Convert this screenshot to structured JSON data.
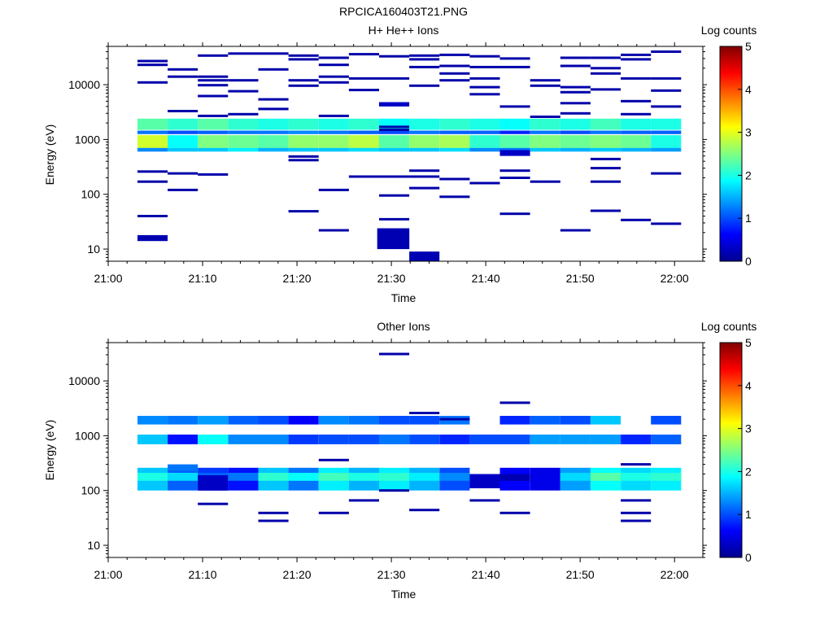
{
  "figure_title": "RPCICA160403T21.PNG",
  "colors": {
    "colormap": [
      "#00008f",
      "#0000ff",
      "#0080ff",
      "#00ffff",
      "#80ff80",
      "#ffff00",
      "#ff8000",
      "#ff0000",
      "#800000"
    ],
    "axis": "#000000",
    "background": "#ffffff"
  },
  "chart_data": [
    {
      "type": "heatmap",
      "title": "H+ He++ Ions",
      "xlabel": "Time",
      "ylabel": "Energy (eV)",
      "x_ticks": [
        "21:00",
        "21:10",
        "21:20",
        "21:30",
        "21:40",
        "21:50",
        "22:00"
      ],
      "xlim_minutes": [
        0,
        63
      ],
      "y_scale": "log",
      "ylim": [
        6,
        50000
      ],
      "y_ticks": [
        {
          "value": 10,
          "label": "10"
        },
        {
          "value": 100,
          "label": "100"
        },
        {
          "value": 1000,
          "label": "1000"
        },
        {
          "value": 10000,
          "label": "10000"
        }
      ],
      "colorbar": {
        "label": "Log counts",
        "range": [
          0,
          5
        ],
        "ticks": [
          "0",
          "1",
          "2",
          "3",
          "4",
          "5"
        ]
      },
      "time_bins_minutes": [
        3.1,
        6.3,
        9.5,
        12.7,
        15.9,
        19.1,
        22.3,
        25.5,
        28.7,
        31.9,
        35.1,
        38.3,
        41.5,
        44.7,
        47.9,
        51.1,
        54.3,
        57.5,
        60.7
      ],
      "bands": [
        {
          "e_lo": 700,
          "e_hi": 1200,
          "values": [
            2.9,
            1.9,
            2.5,
            2.4,
            2.3,
            2.6,
            2.6,
            2.8,
            2.3,
            2.6,
            2.7,
            2.1,
            2.3,
            2.5,
            2.4,
            2.5,
            2.4,
            2.0,
            2.9
          ]
        },
        {
          "e_lo": 600,
          "e_hi": 700,
          "values": [
            1.3,
            1.6,
            1.6,
            1.8,
            1.5,
            1.6,
            1.6,
            1.7,
            1.6,
            1.6,
            1.7,
            1.3,
            1.2,
            1.6,
            1.5,
            1.6,
            1.5,
            1.4,
            1.3
          ]
        },
        {
          "e_lo": 1500,
          "e_hi": 2400,
          "values": [
            2.3,
            2.1,
            2.3,
            2.1,
            2.0,
            2.1,
            2.0,
            2.1,
            1.9,
            2.0,
            2.1,
            2.0,
            1.9,
            2.1,
            2.0,
            2.2,
            2.0,
            2.0,
            2.1
          ]
        },
        {
          "e_lo": 1250,
          "e_hi": 1450,
          "values": [
            1.2,
            1.0,
            1.1,
            1.2,
            1.2,
            1.3,
            1.2,
            1.1,
            1.0,
            1.2,
            1.1,
            1.1,
            0.8,
            1.2,
            1.0,
            1.2,
            1.1,
            1.1,
            1.2
          ]
        }
      ],
      "blocks": [
        {
          "t0": 28.5,
          "t1": 31.9,
          "e_lo": 10,
          "e_hi": 24,
          "value": 0.2
        },
        {
          "t0": 31.9,
          "t1": 35.1,
          "e_lo": 6,
          "e_hi": 9,
          "value": 0.2
        },
        {
          "t0": 3.1,
          "t1": 6.3,
          "e_lo": 14,
          "e_hi": 18,
          "value": 0.2
        },
        {
          "t0": 41.5,
          "t1": 44.7,
          "e_lo": 500,
          "e_hi": 640,
          "value": 0.3
        },
        {
          "t0": 28.7,
          "t1": 31.9,
          "e_lo": 4000,
          "e_hi": 4800,
          "value": 0.3
        }
      ],
      "lines": [
        {
          "t": 3.1,
          "e": 27000
        },
        {
          "t": 3.1,
          "e": 23000
        },
        {
          "t": 3.1,
          "e": 11000
        },
        {
          "t": 3.1,
          "e": 260
        },
        {
          "t": 3.1,
          "e": 170
        },
        {
          "t": 3.1,
          "e": 40
        },
        {
          "t": 6.3,
          "e": 19000
        },
        {
          "t": 6.3,
          "e": 14000
        },
        {
          "t": 6.3,
          "e": 3300
        },
        {
          "t": 6.3,
          "e": 240
        },
        {
          "t": 6.3,
          "e": 120
        },
        {
          "t": 9.5,
          "e": 34000
        },
        {
          "t": 9.5,
          "e": 14000
        },
        {
          "t": 9.5,
          "e": 12000
        },
        {
          "t": 9.5,
          "e": 9800
        },
        {
          "t": 9.5,
          "e": 6200
        },
        {
          "t": 9.5,
          "e": 2700
        },
        {
          "t": 9.5,
          "e": 230
        },
        {
          "t": 12.7,
          "e": 37000
        },
        {
          "t": 12.7,
          "e": 12000
        },
        {
          "t": 12.7,
          "e": 7600
        },
        {
          "t": 12.7,
          "e": 2900
        },
        {
          "t": 15.9,
          "e": 37000
        },
        {
          "t": 15.9,
          "e": 19000
        },
        {
          "t": 15.9,
          "e": 5400
        },
        {
          "t": 15.9,
          "e": 3600
        },
        {
          "t": 19.1,
          "e": 34000
        },
        {
          "t": 19.1,
          "e": 29000
        },
        {
          "t": 19.1,
          "e": 12000
        },
        {
          "t": 19.1,
          "e": 9600
        },
        {
          "t": 19.1,
          "e": 490
        },
        {
          "t": 19.1,
          "e": 420
        },
        {
          "t": 19.1,
          "e": 49
        },
        {
          "t": 22.3,
          "e": 31000
        },
        {
          "t": 22.3,
          "e": 23000
        },
        {
          "t": 22.3,
          "e": 14000
        },
        {
          "t": 22.3,
          "e": 11000
        },
        {
          "t": 22.3,
          "e": 2700
        },
        {
          "t": 22.3,
          "e": 120
        },
        {
          "t": 22.3,
          "e": 22
        },
        {
          "t": 25.5,
          "e": 36000
        },
        {
          "t": 25.5,
          "e": 13000
        },
        {
          "t": 25.5,
          "e": 8000
        },
        {
          "t": 25.5,
          "e": 210
        },
        {
          "t": 28.7,
          "e": 33000
        },
        {
          "t": 28.7,
          "e": 13000
        },
        {
          "t": 28.7,
          "e": 1700
        },
        {
          "t": 28.7,
          "e": 1500
        },
        {
          "t": 28.7,
          "e": 210
        },
        {
          "t": 28.7,
          "e": 95
        },
        {
          "t": 28.7,
          "e": 35
        },
        {
          "t": 31.9,
          "e": 34000
        },
        {
          "t": 31.9,
          "e": 29000
        },
        {
          "t": 31.9,
          "e": 21000
        },
        {
          "t": 31.9,
          "e": 9600
        },
        {
          "t": 31.9,
          "e": 270
        },
        {
          "t": 31.9,
          "e": 210
        },
        {
          "t": 31.9,
          "e": 130
        },
        {
          "t": 35.1,
          "e": 35000
        },
        {
          "t": 35.1,
          "e": 22000
        },
        {
          "t": 35.1,
          "e": 16000
        },
        {
          "t": 35.1,
          "e": 12000
        },
        {
          "t": 35.1,
          "e": 190
        },
        {
          "t": 35.1,
          "e": 90
        },
        {
          "t": 38.3,
          "e": 33000
        },
        {
          "t": 38.3,
          "e": 21000
        },
        {
          "t": 38.3,
          "e": 13000
        },
        {
          "t": 38.3,
          "e": 9000
        },
        {
          "t": 38.3,
          "e": 6700
        },
        {
          "t": 38.3,
          "e": 160
        },
        {
          "t": 41.5,
          "e": 30000
        },
        {
          "t": 41.5,
          "e": 21000
        },
        {
          "t": 41.5,
          "e": 4000
        },
        {
          "t": 41.5,
          "e": 270
        },
        {
          "t": 41.5,
          "e": 200
        },
        {
          "t": 41.5,
          "e": 44
        },
        {
          "t": 44.7,
          "e": 12000
        },
        {
          "t": 44.7,
          "e": 9600
        },
        {
          "t": 44.7,
          "e": 2600
        },
        {
          "t": 44.7,
          "e": 170
        },
        {
          "t": 47.9,
          "e": 31000
        },
        {
          "t": 47.9,
          "e": 22000
        },
        {
          "t": 47.9,
          "e": 9000
        },
        {
          "t": 47.9,
          "e": 7300
        },
        {
          "t": 47.9,
          "e": 4600
        },
        {
          "t": 47.9,
          "e": 3000
        },
        {
          "t": 47.9,
          "e": 22
        },
        {
          "t": 51.1,
          "e": 31000
        },
        {
          "t": 51.1,
          "e": 20000
        },
        {
          "t": 51.1,
          "e": 16000
        },
        {
          "t": 51.1,
          "e": 8200
        },
        {
          "t": 51.1,
          "e": 440
        },
        {
          "t": 51.1,
          "e": 300
        },
        {
          "t": 51.1,
          "e": 170
        },
        {
          "t": 51.1,
          "e": 50
        },
        {
          "t": 54.3,
          "e": 35000
        },
        {
          "t": 54.3,
          "e": 29000
        },
        {
          "t": 54.3,
          "e": 13000
        },
        {
          "t": 54.3,
          "e": 5000
        },
        {
          "t": 54.3,
          "e": 2900
        },
        {
          "t": 54.3,
          "e": 34
        },
        {
          "t": 57.5,
          "e": 40000
        },
        {
          "t": 57.5,
          "e": 13000
        },
        {
          "t": 57.5,
          "e": 7800
        },
        {
          "t": 57.5,
          "e": 4000
        },
        {
          "t": 57.5,
          "e": 240
        },
        {
          "t": 57.5,
          "e": 29
        }
      ]
    },
    {
      "type": "heatmap",
      "title": "Other Ions",
      "xlabel": "Time",
      "ylabel": "Energy (eV)",
      "x_ticks": [
        "21:00",
        "21:10",
        "21:20",
        "21:30",
        "21:40",
        "21:50",
        "22:00"
      ],
      "xlim_minutes": [
        0,
        63
      ],
      "y_scale": "log",
      "ylim": [
        6,
        50000
      ],
      "y_ticks": [
        {
          "value": 10,
          "label": "10"
        },
        {
          "value": 100,
          "label": "100"
        },
        {
          "value": 1000,
          "label": "1000"
        },
        {
          "value": 10000,
          "label": "10000"
        }
      ],
      "colorbar": {
        "label": "Log counts",
        "range": [
          0,
          5
        ],
        "ticks": [
          "0",
          "1",
          "2",
          "3",
          "4",
          "5"
        ]
      },
      "time_bins_minutes": [
        3.1,
        6.3,
        9.5,
        12.7,
        15.9,
        19.1,
        22.3,
        25.5,
        28.7,
        31.9,
        35.1,
        38.3,
        41.5,
        44.7,
        47.9,
        51.1,
        54.3,
        57.5,
        60.7
      ],
      "bands": [
        {
          "e_lo": 1600,
          "e_hi": 2300,
          "values": [
            1.3,
            1.2,
            1.4,
            1.1,
            1.0,
            0.6,
            1.3,
            1.2,
            1.0,
            1.0,
            1.2,
            0,
            0.8,
            1.1,
            1.0,
            1.6,
            0,
            1.0,
            1.1
          ]
        },
        {
          "e_lo": 700,
          "e_hi": 1050,
          "values": [
            1.6,
            0.7,
            1.9,
            1.3,
            1.3,
            0.9,
            1.0,
            1.0,
            1.2,
            1.0,
            0.8,
            1.0,
            1.0,
            1.4,
            1.4,
            1.4,
            0.8,
            1.1,
            1.2
          ]
        },
        {
          "e_lo": 100,
          "e_hi": 260,
          "values": [
            1.6,
            1.1,
            0.9,
            0.7,
            1.6,
            1.2,
            1.8,
            1.5,
            1.8,
            1.5,
            1.0,
            0,
            0.6,
            0.5,
            1.4,
            1.9,
            1.7,
            1.8,
            1.3
          ]
        },
        {
          "e_lo": 150,
          "e_hi": 210,
          "values": [
            2.0,
            1.7,
            1.1,
            1.2,
            2.1,
            1.9,
            2.2,
            2.0,
            2.1,
            1.8,
            1.3,
            0,
            0,
            0,
            1.7,
            2.3,
            2.0,
            2.1,
            1.6
          ]
        }
      ],
      "blocks": [
        {
          "t0": 6.3,
          "t1": 9.5,
          "e_lo": 230,
          "e_hi": 300,
          "value": 1.2
        },
        {
          "t0": 9.5,
          "t1": 12.7,
          "e_lo": 100,
          "e_hi": 190,
          "value": 0.3
        },
        {
          "t0": 38.3,
          "t1": 41.5,
          "e_lo": 110,
          "e_hi": 200,
          "value": 0.3
        },
        {
          "t0": 41.5,
          "t1": 44.7,
          "e_lo": 150,
          "e_hi": 200,
          "value": 0.2
        }
      ],
      "lines": [
        {
          "t": 28.7,
          "e": 31000
        },
        {
          "t": 41.5,
          "e": 4000
        },
        {
          "t": 31.9,
          "e": 2600
        },
        {
          "t": 35.1,
          "e": 2000
        },
        {
          "t": 22.3,
          "e": 360
        },
        {
          "t": 54.3,
          "e": 300
        },
        {
          "t": 25.5,
          "e": 66
        },
        {
          "t": 38.3,
          "e": 66
        },
        {
          "t": 54.3,
          "e": 66
        },
        {
          "t": 9.5,
          "e": 57
        },
        {
          "t": 31.9,
          "e": 44
        },
        {
          "t": 15.9,
          "e": 39
        },
        {
          "t": 22.3,
          "e": 39
        },
        {
          "t": 41.5,
          "e": 39
        },
        {
          "t": 54.3,
          "e": 39
        },
        {
          "t": 15.9,
          "e": 28
        },
        {
          "t": 54.3,
          "e": 28
        },
        {
          "t": 28.7,
          "e": 100
        }
      ]
    }
  ]
}
